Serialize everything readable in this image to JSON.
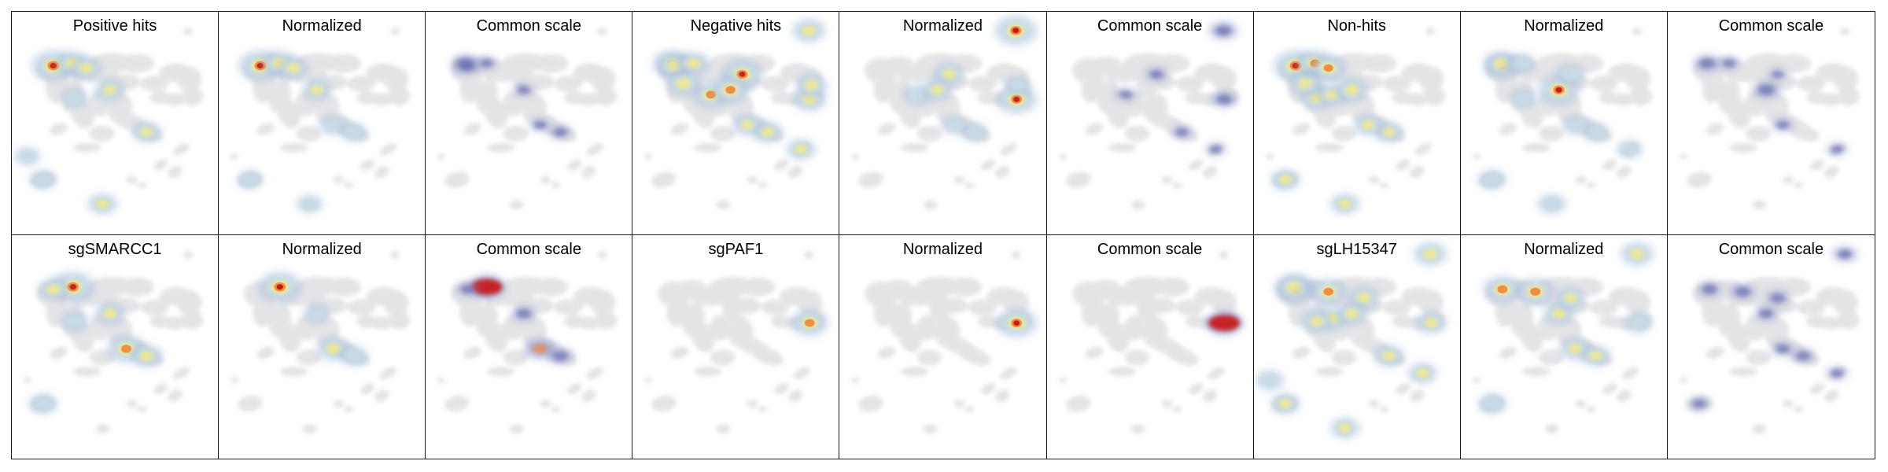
{
  "figure": {
    "rows": [
      {
        "panels": [
          {
            "title": "Positive hits",
            "kind": "raw",
            "hotspots": [
              {
                "id": "b",
                "v": 1.0
              },
              {
                "id": "c",
                "v": 0.6
              },
              {
                "id": "d",
                "v": 0.5
              },
              {
                "id": "p",
                "v": 0.45
              },
              {
                "id": "g",
                "v": 0.35
              },
              {
                "id": "o",
                "v": 0.35
              },
              {
                "id": "s",
                "v": 0.3
              },
              {
                "id": "h",
                "v": 0.5
              },
              {
                "id": "k",
                "v": 0.45
              }
            ]
          },
          {
            "title": "Normalized",
            "kind": "normalized",
            "hotspots": [
              {
                "id": "b",
                "v": 1.0
              },
              {
                "id": "c",
                "v": 0.65
              },
              {
                "id": "d",
                "v": 0.5
              },
              {
                "id": "h",
                "v": 0.45
              },
              {
                "id": "j",
                "v": 0.4
              },
              {
                "id": "p",
                "v": 0.3
              },
              {
                "id": "o",
                "v": 0.3
              },
              {
                "id": "k",
                "v": 0.3
              }
            ]
          },
          {
            "title": "Common scale",
            "kind": "common",
            "hotspots": [
              {
                "id": "a",
                "v": 0.5
              },
              {
                "id": "b",
                "v": 0.55
              },
              {
                "id": "c",
                "v": 0.3
              },
              {
                "id": "k",
                "v": 0.35
              },
              {
                "id": "h",
                "v": 0.3
              },
              {
                "id": "j",
                "v": 0.3
              }
            ]
          }
        ]
      },
      {
        "panels": [
          {
            "title": "Negative hits",
            "kind": "raw",
            "hotspots": [
              {
                "id": "a",
                "v": 0.75
              },
              {
                "id": "b",
                "v": 0.55
              },
              {
                "id": "c",
                "v": 0.55
              },
              {
                "id": "f",
                "v": 0.75
              },
              {
                "id": "e",
                "v": 0.9
              },
              {
                "id": "m",
                "v": 0.6
              },
              {
                "id": "r",
                "v": 0.6
              },
              {
                "id": "h",
                "v": 0.75
              },
              {
                "id": "i",
                "v": 0.65
              },
              {
                "id": "q",
                "v": 0.55
              },
              {
                "id": "n",
                "v": 0.45
              },
              {
                "id": "k",
                "v": 0.5
              },
              {
                "id": "j",
                "v": 0.45
              }
            ]
          },
          {
            "title": "Normalized",
            "kind": "normalized",
            "hotspots": [
              {
                "id": "m",
                "v": 0.95
              },
              {
                "id": "r",
                "v": 0.9
              },
              {
                "id": "e",
                "v": 0.5
              },
              {
                "id": "f",
                "v": 0.4
              },
              {
                "id": "h",
                "v": 0.45
              },
              {
                "id": "k",
                "v": 0.35
              },
              {
                "id": "j",
                "v": 0.3
              },
              {
                "id": "q",
                "v": 0.3
              }
            ]
          },
          {
            "title": "Common scale",
            "kind": "common",
            "hotspots": [
              {
                "id": "m",
                "v": 0.6
              },
              {
                "id": "r",
                "v": 0.5
              },
              {
                "id": "e",
                "v": 0.4
              },
              {
                "id": "f",
                "v": 0.35
              },
              {
                "id": "k",
                "v": 0.3
              },
              {
                "id": "n",
                "v": 0.25
              }
            ]
          }
        ]
      },
      {
        "panels": [
          {
            "title": "Non-hits",
            "kind": "raw",
            "hotspots": [
              {
                "id": "b",
                "v": 1.0
              },
              {
                "id": "c",
                "v": 0.75
              },
              {
                "id": "d",
                "v": 0.7
              },
              {
                "id": "g",
                "v": 0.55
              },
              {
                "id": "f",
                "v": 0.5
              },
              {
                "id": "h",
                "v": 0.6
              },
              {
                "id": "i",
                "v": 0.55
              },
              {
                "id": "p",
                "v": 0.45
              },
              {
                "id": "o",
                "v": 0.45
              },
              {
                "id": "k",
                "v": 0.45
              },
              {
                "id": "j",
                "v": 0.45
              }
            ]
          },
          {
            "title": "Normalized",
            "kind": "normalized",
            "hotspots": [
              {
                "id": "b",
                "v": 0.75
              },
              {
                "id": "h",
                "v": 0.95
              },
              {
                "id": "a",
                "v": 0.45
              },
              {
                "id": "c",
                "v": 0.4
              },
              {
                "id": "e",
                "v": 0.4
              },
              {
                "id": "p",
                "v": 0.4
              },
              {
                "id": "o",
                "v": 0.4
              },
              {
                "id": "g",
                "v": 0.35
              },
              {
                "id": "k",
                "v": 0.35
              },
              {
                "id": "j",
                "v": 0.35
              },
              {
                "id": "n",
                "v": 0.3
              }
            ]
          },
          {
            "title": "Common scale",
            "kind": "common",
            "hotspots": [
              {
                "id": "a",
                "v": 0.55
              },
              {
                "id": "h",
                "v": 0.6
              },
              {
                "id": "c",
                "v": 0.3
              },
              {
                "id": "e",
                "v": 0.25
              },
              {
                "id": "j",
                "v": 0.3
              },
              {
                "id": "n",
                "v": 0.25
              }
            ]
          }
        ]
      },
      {
        "panels": [
          {
            "title": "sgSMARCC1",
            "kind": "raw",
            "hotspots": [
              {
                "id": "c",
                "v": 1.0
              },
              {
                "id": "b",
                "v": 0.5
              },
              {
                "id": "j",
                "v": 0.8
              },
              {
                "id": "k",
                "v": 0.55
              },
              {
                "id": "h",
                "v": 0.5
              },
              {
                "id": "g",
                "v": 0.4
              },
              {
                "id": "o",
                "v": 0.4
              }
            ]
          },
          {
            "title": "Normalized",
            "kind": "normalized",
            "hotspots": [
              {
                "id": "c",
                "v": 1.0
              },
              {
                "id": "j",
                "v": 0.6
              },
              {
                "id": "k",
                "v": 0.4
              },
              {
                "id": "h",
                "v": 0.35
              }
            ]
          },
          {
            "title": "Common scale",
            "kind": "common",
            "hotspots": [
              {
                "id": "c",
                "v": 1.0
              },
              {
                "id": "j",
                "v": 0.75
              },
              {
                "id": "k",
                "v": 0.5
              },
              {
                "id": "h",
                "v": 0.45
              },
              {
                "id": "b",
                "v": 0.35
              }
            ]
          }
        ]
      },
      {
        "panels": [
          {
            "title": "sgPAF1",
            "kind": "raw",
            "hotspots": [
              {
                "id": "r",
                "v": 0.75
              }
            ]
          },
          {
            "title": "Normalized",
            "kind": "normalized",
            "hotspots": [
              {
                "id": "r",
                "v": 0.9
              }
            ]
          },
          {
            "title": "Common scale",
            "kind": "common",
            "hotspots": [
              {
                "id": "r",
                "v": 1.0
              }
            ]
          }
        ]
      },
      {
        "panels": [
          {
            "title": "sgLH15347",
            "kind": "raw",
            "hotspots": [
              {
                "id": "b",
                "v": 0.9
              },
              {
                "id": "a",
                "v": 0.6
              },
              {
                "id": "d",
                "v": 0.75
              },
              {
                "id": "e",
                "v": 0.55
              },
              {
                "id": "f",
                "v": 0.55
              },
              {
                "id": "g",
                "v": 0.5
              },
              {
                "id": "m",
                "v": 0.6
              },
              {
                "id": "r",
                "v": 0.5
              },
              {
                "id": "h",
                "v": 0.5
              },
              {
                "id": "k",
                "v": 0.5
              },
              {
                "id": "n",
                "v": 0.45
              },
              {
                "id": "o",
                "v": 0.45
              },
              {
                "id": "p",
                "v": 0.45
              },
              {
                "id": "s",
                "v": 0.4
              }
            ]
          },
          {
            "title": "Normalized",
            "kind": "normalized",
            "hotspots": [
              {
                "id": "b",
                "v": 0.8
              },
              {
                "id": "d",
                "v": 0.8
              },
              {
                "id": "m",
                "v": 0.6
              },
              {
                "id": "h",
                "v": 0.5
              },
              {
                "id": "j",
                "v": 0.55
              },
              {
                "id": "k",
                "v": 0.45
              },
              {
                "id": "e",
                "v": 0.45
              },
              {
                "id": "o",
                "v": 0.4
              },
              {
                "id": "r",
                "v": 0.4
              }
            ]
          },
          {
            "title": "Common scale",
            "kind": "common",
            "hotspots": [
              {
                "id": "b",
                "v": 0.45
              },
              {
                "id": "d",
                "v": 0.5
              },
              {
                "id": "m",
                "v": 0.45
              },
              {
                "id": "e",
                "v": 0.45
              },
              {
                "id": "h",
                "v": 0.4
              },
              {
                "id": "j",
                "v": 0.4
              },
              {
                "id": "k",
                "v": 0.4
              },
              {
                "id": "o",
                "v": 0.35
              },
              {
                "id": "n",
                "v": 0.3
              }
            ]
          }
        ]
      }
    ]
  },
  "colors": {
    "background_cloud": "#e4e4e6",
    "low": "#9ab4d6",
    "mid_low": "#c9dde8",
    "mid": "#f2ea8a",
    "high": "#f08a3a",
    "peak": "#c81a1a",
    "common_low": "#8a93c8",
    "common_high": "#5b5ea8",
    "border": "#1a1a1a"
  }
}
